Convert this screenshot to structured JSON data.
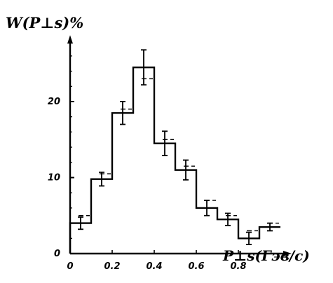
{
  "chart_data": {
    "type": "histogram",
    "ylabel": "W(P⊥s)%",
    "xlabel": "P⊥s(Гэв/c)",
    "xlim": [
      0,
      1.0
    ],
    "ylim": [
      0,
      28
    ],
    "x_ticks": [
      {
        "value": 0,
        "label": "0"
      },
      {
        "value": 0.2,
        "label": "0.2"
      },
      {
        "value": 0.4,
        "label": "0.4"
      },
      {
        "value": 0.6,
        "label": "0.6"
      },
      {
        "value": 0.8,
        "label": "0.8"
      }
    ],
    "y_ticks": [
      {
        "value": 0,
        "label": "0"
      },
      {
        "value": 10,
        "label": "10"
      },
      {
        "value": 20,
        "label": "20"
      }
    ],
    "bin_edges": [
      0,
      0.1,
      0.2,
      0.3,
      0.4,
      0.5,
      0.6,
      0.7,
      0.8,
      0.9,
      1.0
    ],
    "series": [
      {
        "style": "solid-with-errors",
        "values": [
          4.0,
          9.8,
          18.5,
          24.5,
          14.5,
          11.0,
          6.0,
          4.5,
          2.0,
          3.5
        ],
        "errors": [
          0.8,
          0.9,
          1.5,
          2.3,
          1.6,
          1.3,
          1.0,
          0.8,
          0.8,
          0.5
        ]
      },
      {
        "style": "dashed-segments",
        "values": [
          5.0,
          10.5,
          19.0,
          23.0,
          15.0,
          11.5,
          7.0,
          5.0,
          3.0,
          4.0
        ]
      }
    ],
    "grid": false
  }
}
